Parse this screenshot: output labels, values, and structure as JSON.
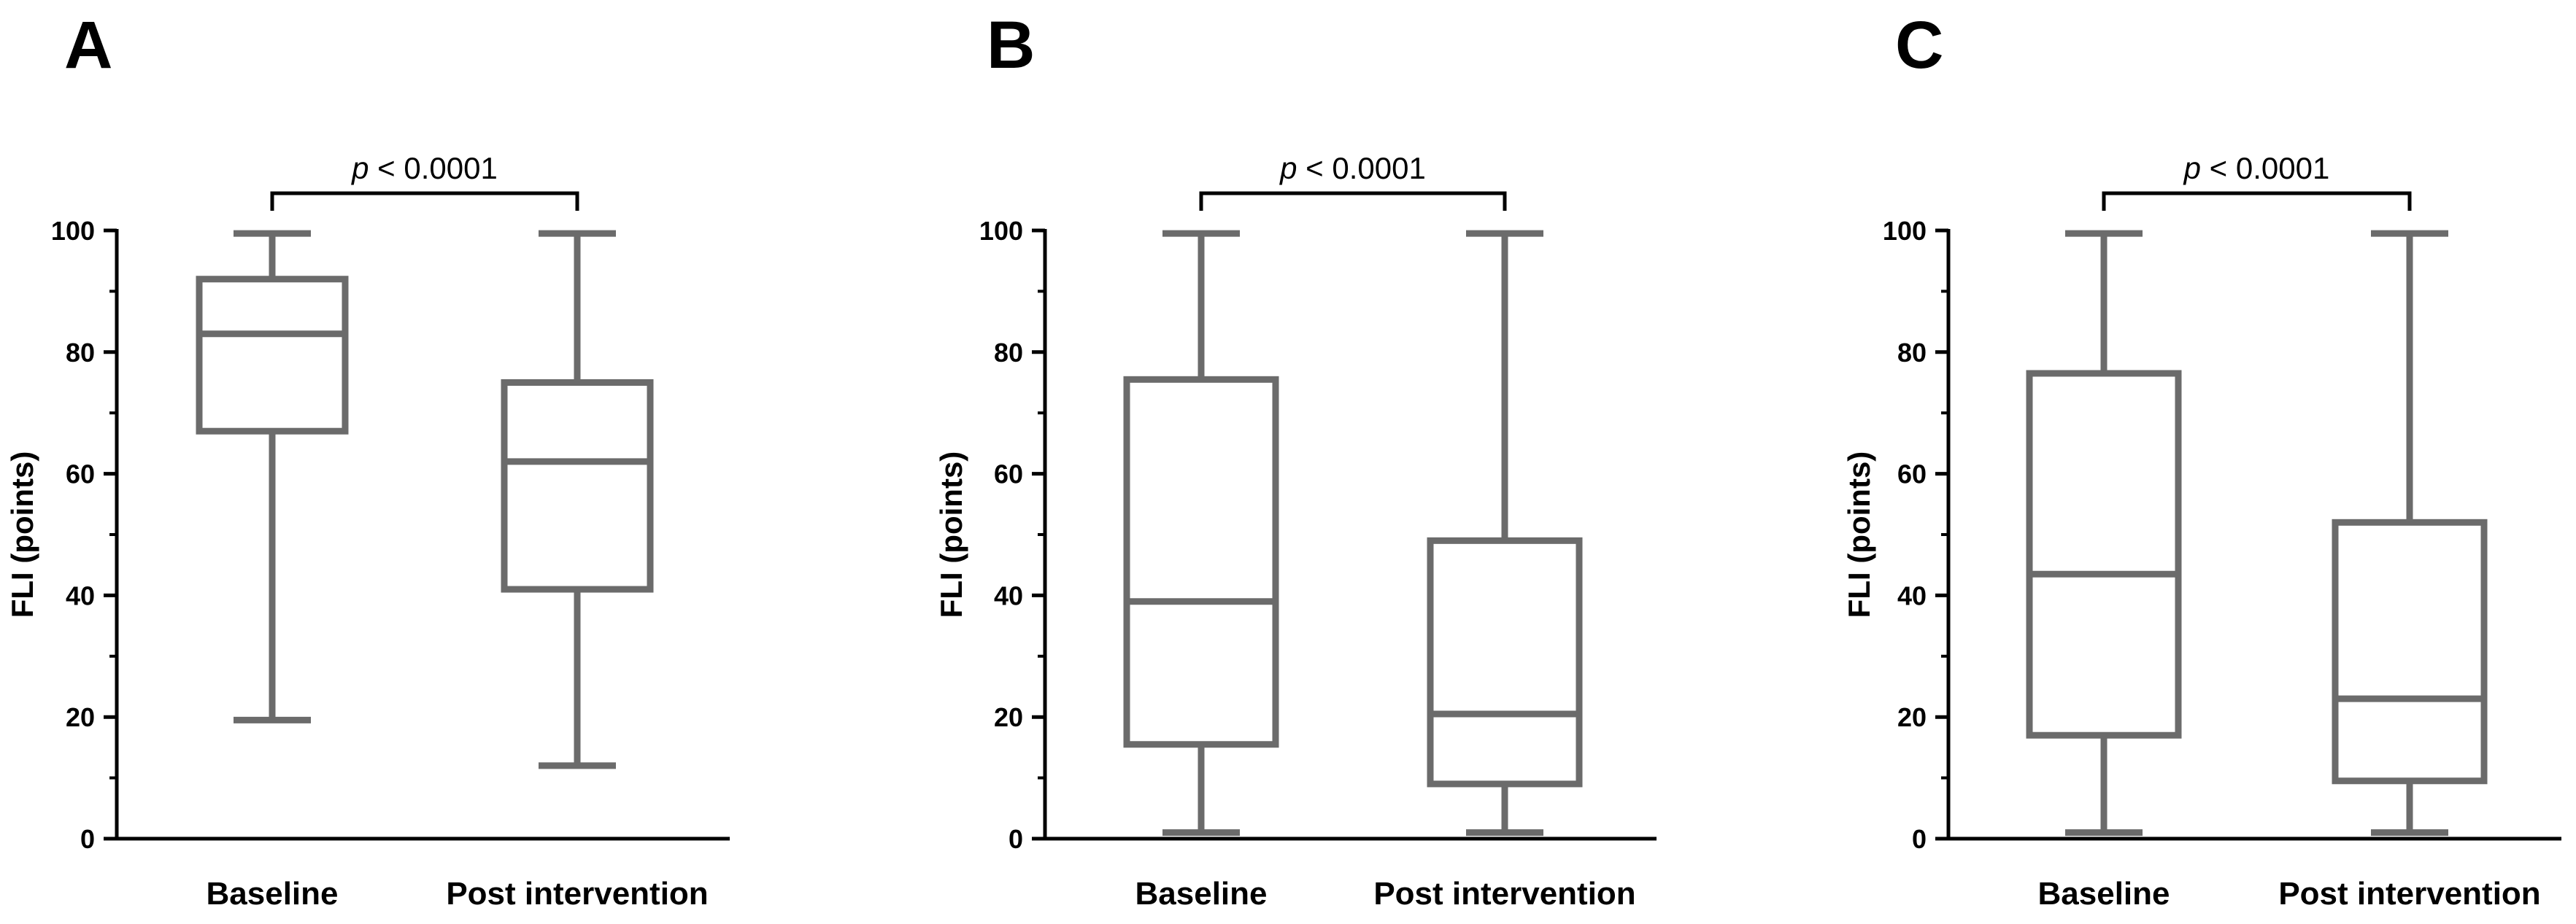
{
  "chart_data": [
    {
      "type": "box",
      "panel": "A",
      "ylabel": "FLI (points)",
      "ylim": [
        0,
        100
      ],
      "yticks": [
        0,
        20,
        40,
        60,
        80,
        100
      ],
      "categories": [
        "Baseline",
        "Post intervention"
      ],
      "boxes": [
        {
          "category": "Baseline",
          "min": 19.5,
          "q1": 67,
          "median": 83,
          "q3": 92,
          "max": 99.5
        },
        {
          "category": "Post intervention",
          "min": 12,
          "q1": 41,
          "median": 62,
          "q3": 75,
          "max": 99.5
        }
      ],
      "annotation": {
        "italic": "p",
        "text": " < 0.0001"
      }
    },
    {
      "type": "box",
      "panel": "B",
      "ylabel": "FLI (points)",
      "ylim": [
        0,
        100
      ],
      "yticks": [
        0,
        20,
        40,
        60,
        80,
        100
      ],
      "categories": [
        "Baseline",
        "Post intervention"
      ],
      "boxes": [
        {
          "category": "Baseline",
          "min": 1,
          "q1": 15.5,
          "median": 39,
          "q3": 75.5,
          "max": 99.5
        },
        {
          "category": "Post intervention",
          "min": 1,
          "q1": 9,
          "median": 20.5,
          "q3": 49,
          "max": 99.5
        }
      ],
      "annotation": {
        "italic": "p",
        "text": " < 0.0001"
      }
    },
    {
      "type": "box",
      "panel": "C",
      "ylabel": "FLI (points)",
      "ylim": [
        0,
        100
      ],
      "yticks": [
        0,
        20,
        40,
        60,
        80,
        100
      ],
      "categories": [
        "Baseline",
        "Post intervention"
      ],
      "boxes": [
        {
          "category": "Baseline",
          "min": 1,
          "q1": 17,
          "median": 43.5,
          "q3": 76.5,
          "max": 99.5
        },
        {
          "category": "Post intervention",
          "min": 1,
          "q1": 9.5,
          "median": 23,
          "q3": 52,
          "max": 99.5
        }
      ],
      "annotation": {
        "italic": "p",
        "text": " < 0.0001"
      }
    }
  ],
  "colors": {
    "box": "#6b6b6b",
    "axis": "#000000",
    "bracket": "#000000"
  }
}
